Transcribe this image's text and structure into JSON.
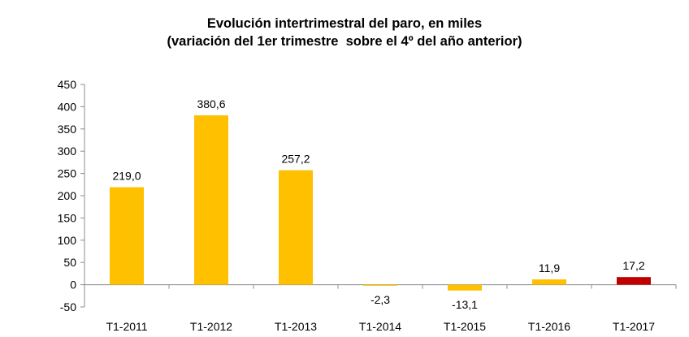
{
  "chart_data": {
    "type": "bar",
    "title": "Evolución intertrimestral del paro, en miles",
    "subtitle": "(variación del 1er trimestre  sobre el 4º del año anterior)",
    "categories": [
      "T1-2011",
      "T1-2012",
      "T1-2013",
      "T1-2014",
      "T1-2015",
      "T1-2016",
      "T1-2017"
    ],
    "values": [
      219.0,
      380.6,
      257.2,
      -2.3,
      -13.1,
      11.9,
      17.2
    ],
    "data_labels": [
      "219,0",
      "380,6",
      "257,2",
      "-2,3",
      "-13,1",
      "11,9",
      "17,2"
    ],
    "bar_colors": [
      "#FFC000",
      "#FFC000",
      "#FFC000",
      "#FFC000",
      "#FFC000",
      "#FFC000",
      "#C00000"
    ],
    "ylim": [
      -50,
      450
    ],
    "yticks": [
      -50,
      0,
      50,
      100,
      150,
      200,
      250,
      300,
      350,
      400,
      450
    ],
    "ytick_labels": [
      "-50",
      "0",
      "50",
      "100",
      "150",
      "200",
      "250",
      "300",
      "350",
      "400",
      "450"
    ],
    "xlabel": "",
    "ylabel": "",
    "grid": false,
    "legend": "none"
  }
}
